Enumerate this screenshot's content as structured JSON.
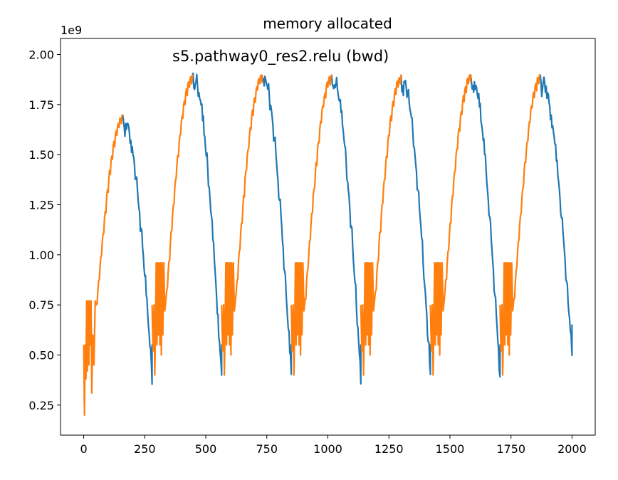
{
  "chart_data": {
    "type": "line",
    "title": "memory allocated",
    "annotation": "s5.pathway0_res2.relu (bwd)",
    "y_multiplier": "1e9",
    "xlabel": "",
    "ylabel": "",
    "xlim": [
      -95,
      2095
    ],
    "ylim": [
      0.1,
      2.08
    ],
    "x_ticks": [
      0,
      250,
      500,
      750,
      1000,
      1250,
      1500,
      1750,
      2000
    ],
    "x_tick_labels": [
      "0",
      "250",
      "500",
      "750",
      "1000",
      "1250",
      "1500",
      "1750",
      "2000"
    ],
    "y_ticks": [
      0.25,
      0.5,
      0.75,
      1.0,
      1.25,
      1.5,
      1.75,
      2.0
    ],
    "y_tick_labels": [
      "0.25",
      "0.50",
      "0.75",
      "1.00",
      "1.25",
      "1.50",
      "1.75",
      "2.00"
    ],
    "grid": false,
    "colors": {
      "forward": "#ff7f0e",
      "backward": "#1f77b4"
    },
    "cycle": {
      "forward_start": [
        [
          0,
          0.55
        ],
        [
          3,
          0.2
        ],
        [
          6,
          0.55
        ],
        [
          9,
          0.38
        ],
        [
          12,
          0.77
        ],
        [
          15,
          0.42
        ],
        [
          18,
          0.77
        ],
        [
          21,
          0.45
        ],
        [
          24,
          0.77
        ],
        [
          27,
          0.55
        ],
        [
          30,
          0.77
        ],
        [
          33,
          0.31
        ],
        [
          37,
          0.6
        ],
        [
          42,
          0.45
        ],
        [
          47,
          0.77
        ],
        [
          52,
          0.75
        ]
      ],
      "forward_restart": [
        [
          0,
          0.75
        ],
        [
          4,
          0.52
        ],
        [
          8,
          0.75
        ],
        [
          11,
          0.4
        ],
        [
          14,
          0.62
        ],
        [
          17,
          0.96
        ],
        [
          20,
          0.55
        ],
        [
          23,
          0.96
        ],
        [
          26,
          0.6
        ],
        [
          29,
          0.96
        ],
        [
          32,
          0.55
        ],
        [
          35,
          0.96
        ],
        [
          38,
          0.5
        ],
        [
          41,
          0.96
        ],
        [
          44,
          0.6
        ],
        [
          48,
          0.96
        ],
        [
          52,
          0.72
        ],
        [
          57,
          0.78
        ]
      ],
      "first_peak": 1.7,
      "peak": 1.9,
      "trough": 0.4,
      "end_value": 0.5
    },
    "series": [
      {
        "role": "forward",
        "segments": [
          {
            "x_start": 0,
            "x_rise_start": 52,
            "x_end": 160,
            "peak": 1.7
          },
          {
            "x_start": 280,
            "x_rise_start": 337,
            "x_end": 445,
            "peak": 1.9
          },
          {
            "x_start": 565,
            "x_rise_start": 622,
            "x_end": 730,
            "peak": 1.9
          },
          {
            "x_start": 850,
            "x_rise_start": 907,
            "x_end": 1015,
            "peak": 1.9
          },
          {
            "x_start": 1135,
            "x_rise_start": 1192,
            "x_end": 1300,
            "peak": 1.9
          },
          {
            "x_start": 1420,
            "x_rise_start": 1477,
            "x_end": 1585,
            "peak": 1.9
          },
          {
            "x_start": 1705,
            "x_rise_start": 1762,
            "x_end": 1870,
            "peak": 1.9
          }
        ]
      },
      {
        "role": "backward",
        "segments": [
          {
            "x_start": 160,
            "x_end": 280,
            "peak": 1.7,
            "end": 0.4
          },
          {
            "x_start": 445,
            "x_end": 565,
            "peak": 1.9,
            "end": 0.4
          },
          {
            "x_start": 730,
            "x_end": 850,
            "peak": 1.9,
            "end": 0.4
          },
          {
            "x_start": 1015,
            "x_end": 1135,
            "peak": 1.9,
            "end": 0.4
          },
          {
            "x_start": 1300,
            "x_end": 1420,
            "peak": 1.9,
            "end": 0.4
          },
          {
            "x_start": 1585,
            "x_end": 1705,
            "peak": 1.9,
            "end": 0.4
          },
          {
            "x_start": 1870,
            "x_end": 2000,
            "peak": 1.9,
            "end": 0.5
          }
        ]
      }
    ]
  }
}
